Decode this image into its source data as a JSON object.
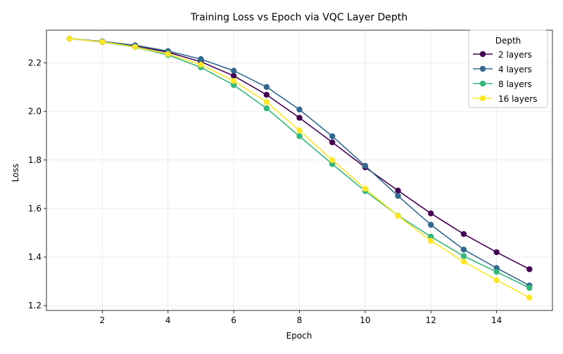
{
  "chart_data": {
    "type": "line",
    "title": "Training Loss vs Epoch via VQC Layer Depth",
    "xlabel": "Epoch",
    "ylabel": "Loss",
    "xlim": [
      0.3,
      15.7
    ],
    "ylim": [
      1.18,
      2.335
    ],
    "xticks": [
      2,
      4,
      6,
      8,
      10,
      12,
      14
    ],
    "yticks": [
      1.2,
      1.4,
      1.6,
      1.8,
      2.0,
      2.2
    ],
    "grid": true,
    "legend": {
      "title": "Depth",
      "placement": "top-right"
    },
    "x": [
      1,
      2,
      3,
      4,
      5,
      6,
      7,
      8,
      9,
      10,
      11,
      12,
      13,
      14,
      15
    ],
    "series": [
      {
        "name": "2 layers",
        "color": "#440154",
        "values": [
          2.3,
          2.288,
          2.27,
          2.244,
          2.205,
          2.147,
          2.069,
          1.974,
          1.873,
          1.77,
          1.674,
          1.58,
          1.495,
          1.42,
          1.35
        ]
      },
      {
        "name": "4 layers",
        "color": "#31688e",
        "values": [
          2.3,
          2.289,
          2.273,
          2.249,
          2.216,
          2.168,
          2.101,
          2.008,
          1.898,
          1.776,
          1.652,
          1.533,
          1.431,
          1.355,
          1.283
        ]
      },
      {
        "name": "8 layers",
        "color": "#35b779",
        "values": [
          2.3,
          2.286,
          2.265,
          2.233,
          2.182,
          2.109,
          2.013,
          1.898,
          1.783,
          1.672,
          1.571,
          1.484,
          1.404,
          1.339,
          1.273
        ]
      },
      {
        "name": "16 layers",
        "color": "#fde725",
        "values": [
          2.3,
          2.287,
          2.266,
          2.237,
          2.193,
          2.126,
          2.039,
          1.922,
          1.8,
          1.682,
          1.57,
          1.467,
          1.381,
          1.305,
          1.233
        ]
      }
    ]
  }
}
